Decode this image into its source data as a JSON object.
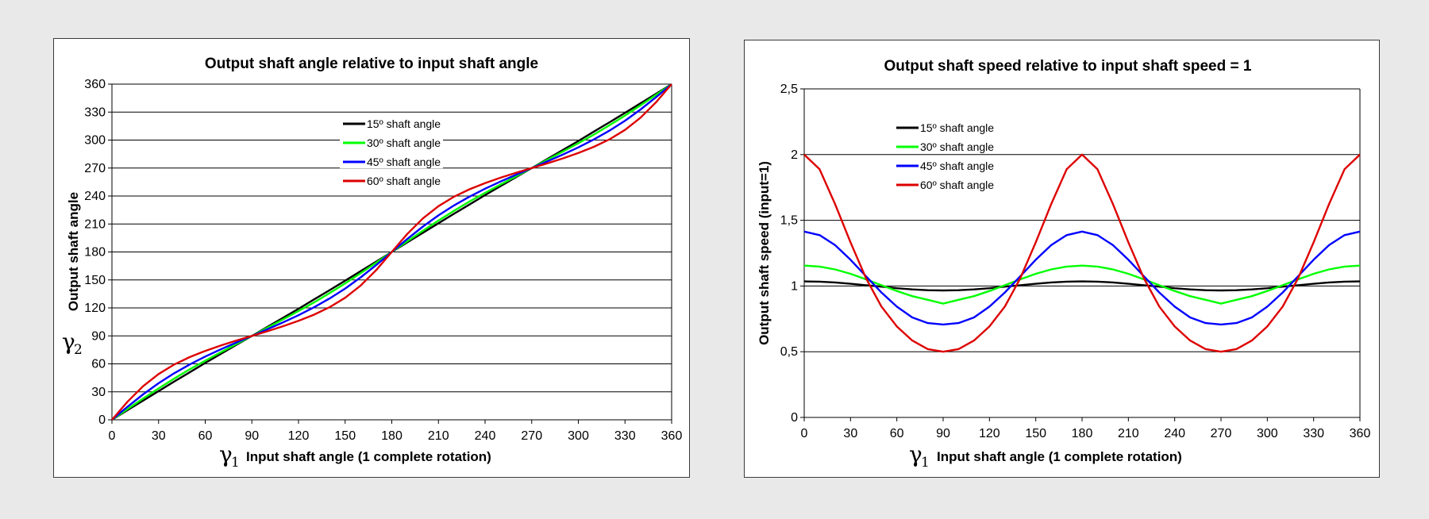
{
  "chart_data": [
    {
      "type": "line",
      "title": "Output shaft angle relative to input shaft angle",
      "xlabel": "Input shaft angle (1 complete rotation)",
      "ylabel": "Output shaft angle",
      "x_symbol": "γ",
      "x_symbol_sub": "1",
      "y_symbol": "γ",
      "y_symbol_sub": "2",
      "xlim": [
        0,
        360
      ],
      "ylim": [
        0,
        360
      ],
      "xticks": [
        "0",
        "30",
        "60",
        "90",
        "120",
        "150",
        "180",
        "210",
        "240",
        "270",
        "300",
        "330",
        "360"
      ],
      "yticks": [
        "0",
        "30",
        "60",
        "90",
        "120",
        "150",
        "180",
        "210",
        "240",
        "270",
        "300",
        "330",
        "360"
      ],
      "grid": "horizontal",
      "legend_position": "top-center",
      "x": [
        0,
        10,
        20,
        30,
        40,
        50,
        60,
        70,
        80,
        90,
        100,
        110,
        120,
        130,
        140,
        150,
        160,
        170,
        180,
        190,
        200,
        210,
        220,
        230,
        240,
        250,
        260,
        270,
        280,
        290,
        300,
        310,
        320,
        330,
        340,
        350,
        360
      ],
      "series": [
        {
          "name": "15º shaft angle",
          "color": "#000000",
          "values": [
            0,
            10.3,
            20.6,
            30.8,
            40.9,
            50.9,
            60.9,
            70.6,
            80.3,
            90,
            99.7,
            109.4,
            119.1,
            129.1,
            139.1,
            149.2,
            159.4,
            169.7,
            180,
            190.3,
            200.6,
            210.8,
            220.9,
            230.9,
            240.9,
            250.6,
            260.3,
            270,
            279.7,
            289.4,
            299.1,
            309.1,
            319.1,
            329.2,
            339.4,
            349.7,
            360
          ]
        },
        {
          "name": "30º shaft angle",
          "color": "#00ff00",
          "values": [
            0,
            11.5,
            22.8,
            33.7,
            44.1,
            54.1,
            63.4,
            72.4,
            81.2,
            90,
            98.8,
            107.6,
            116.6,
            125.9,
            135.9,
            146.3,
            157.2,
            168.5,
            180,
            191.5,
            202.8,
            213.7,
            224.1,
            234.1,
            243.4,
            252.4,
            261.2,
            270,
            278.8,
            287.6,
            296.6,
            305.9,
            315.9,
            326.3,
            337.2,
            348.5,
            360
          ]
        },
        {
          "name": "45º shaft angle",
          "color": "#0000ff",
          "values": [
            0,
            14.0,
            27.2,
            39.2,
            49.9,
            59.3,
            67.8,
            75.6,
            82.9,
            90,
            97.1,
            104.4,
            112.2,
            120.7,
            130.1,
            140.8,
            152.8,
            166.0,
            180,
            194.0,
            207.2,
            219.2,
            229.9,
            239.3,
            247.8,
            255.6,
            262.9,
            270,
            277.1,
            284.4,
            292.2,
            300.7,
            310.1,
            320.8,
            332.8,
            346.0,
            360
          ]
        },
        {
          "name": "60º shaft angle",
          "color": "#dd0000",
          "values": [
            0,
            19.4,
            36.0,
            49.1,
            59.2,
            67.2,
            73.9,
            79.7,
            85.0,
            90,
            95.0,
            100.3,
            106.1,
            112.8,
            120.8,
            130.9,
            144.0,
            160.6,
            180,
            199.4,
            216.0,
            229.1,
            239.2,
            247.2,
            253.9,
            259.7,
            265.0,
            270,
            275.0,
            280.3,
            286.1,
            292.8,
            300.8,
            310.9,
            324.0,
            340.6,
            360
          ]
        }
      ]
    },
    {
      "type": "line",
      "title": "Output shaft speed relative to input shaft speed = 1",
      "xlabel": "Input shaft angle (1 complete rotation)",
      "ylabel": "Output shaft speed (input=1)",
      "x_symbol": "γ",
      "x_symbol_sub": "1",
      "xlim": [
        0,
        360
      ],
      "ylim": [
        0,
        2.5
      ],
      "xticks": [
        "0",
        "30",
        "60",
        "90",
        "120",
        "150",
        "180",
        "210",
        "240",
        "270",
        "300",
        "330",
        "360"
      ],
      "yticks": [
        "0",
        "0,5",
        "1",
        "1,5",
        "2",
        "2,5"
      ],
      "grid": "horizontal",
      "legend_position": "top-left",
      "x": [
        0,
        10,
        20,
        30,
        40,
        50,
        60,
        70,
        80,
        90,
        100,
        110,
        120,
        130,
        140,
        150,
        160,
        170,
        180,
        190,
        200,
        210,
        220,
        230,
        240,
        250,
        260,
        270,
        280,
        290,
        300,
        310,
        320,
        330,
        340,
        350,
        360
      ],
      "series": [
        {
          "name": "15º shaft angle",
          "color": "#000000",
          "values": [
            1.035,
            1.033,
            1.027,
            1.017,
            1.006,
            0.995,
            0.983,
            0.974,
            0.968,
            0.966,
            0.968,
            0.974,
            0.983,
            0.995,
            1.006,
            1.017,
            1.027,
            1.033,
            1.035,
            1.033,
            1.027,
            1.017,
            1.006,
            0.995,
            0.983,
            0.974,
            0.968,
            0.966,
            0.968,
            0.974,
            0.983,
            0.995,
            1.006,
            1.017,
            1.027,
            1.033,
            1.035
          ]
        },
        {
          "name": "30º shaft angle",
          "color": "#00ff00",
          "values": [
            1.155,
            1.148,
            1.126,
            1.093,
            1.051,
            1.006,
            0.962,
            0.923,
            0.895,
            0.866,
            0.895,
            0.923,
            0.962,
            1.006,
            1.051,
            1.093,
            1.126,
            1.148,
            1.155,
            1.148,
            1.126,
            1.093,
            1.051,
            1.006,
            0.962,
            0.923,
            0.895,
            0.866,
            0.895,
            0.923,
            0.962,
            1.006,
            1.051,
            1.093,
            1.126,
            1.148,
            1.155
          ]
        },
        {
          "name": "45º shaft angle",
          "color": "#0000ff",
          "values": [
            1.414,
            1.387,
            1.311,
            1.2,
            1.074,
            0.951,
            0.843,
            0.761,
            0.718,
            0.707,
            0.718,
            0.761,
            0.843,
            0.951,
            1.074,
            1.2,
            1.311,
            1.387,
            1.414,
            1.387,
            1.311,
            1.2,
            1.074,
            0.951,
            0.843,
            0.761,
            0.718,
            0.707,
            0.718,
            0.761,
            0.843,
            0.951,
            1.074,
            1.2,
            1.311,
            1.387,
            1.414
          ]
        },
        {
          "name": "60º shaft angle",
          "color": "#dd0000",
          "values": [
            2.0,
            1.888,
            1.623,
            1.333,
            1.06,
            0.844,
            0.692,
            0.585,
            0.52,
            0.5,
            0.52,
            0.585,
            0.692,
            0.844,
            1.06,
            1.333,
            1.623,
            1.888,
            2.0,
            1.888,
            1.623,
            1.333,
            1.06,
            0.844,
            0.692,
            0.585,
            0.52,
            0.5,
            0.52,
            0.585,
            0.692,
            0.844,
            1.06,
            1.333,
            1.623,
            1.888,
            2.0
          ]
        }
      ]
    }
  ]
}
